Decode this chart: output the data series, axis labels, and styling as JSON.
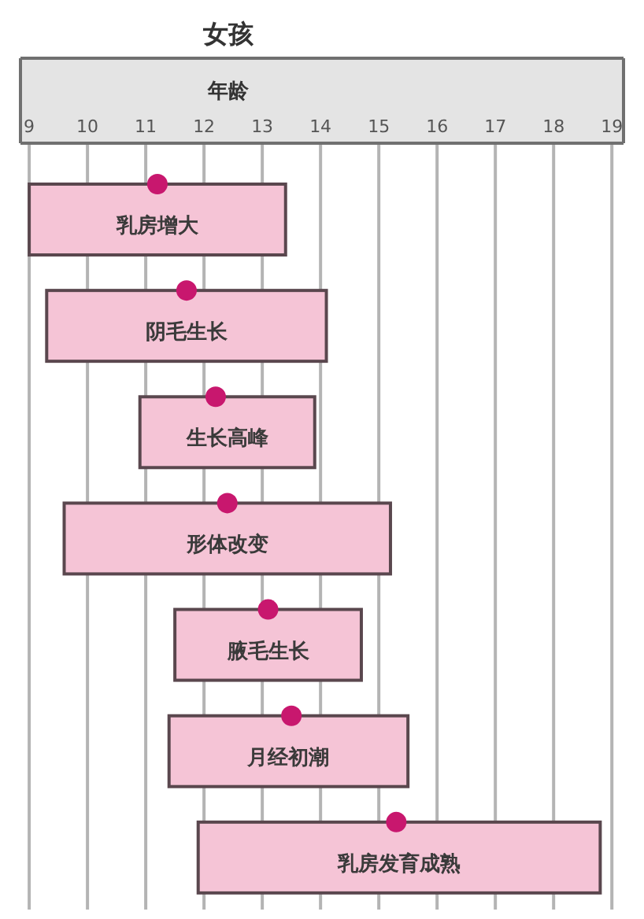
{
  "chart_data": {
    "type": "bar",
    "orientation": "horizontal",
    "title": "女孩",
    "xlabel": "年龄",
    "categories": [
      "乳房增大",
      "阴毛生长",
      "生长高峰",
      "形体改变",
      "腋毛生长",
      "月经初潮",
      "乳房发育成熟"
    ],
    "series": [
      {
        "type": "bar",
        "color": "#f5c4d6",
        "base": [
          9.0,
          9.3,
          10.9,
          9.6,
          11.5,
          11.4,
          11.9
        ],
        "values": [
          4.4,
          4.8,
          3.0,
          5.6,
          3.2,
          4.1,
          6.9
        ]
      },
      {
        "type": "scatter",
        "color": "#c8176e",
        "x": [
          "乳房增大",
          "阴毛生长",
          "生长高峰",
          "形体改变",
          "腋毛生长",
          "月经初潮",
          "乳房发育成熟"
        ],
        "values": [
          11.2,
          11.7,
          12.2,
          12.4,
          13.1,
          13.5,
          15.3
        ]
      }
    ],
    "xlim": [
      8.85,
      19.2
    ],
    "xticks": [
      9,
      10,
      11,
      12,
      13,
      14,
      15,
      16,
      17,
      18,
      19
    ],
    "grid": "x",
    "marker": "circle"
  }
}
